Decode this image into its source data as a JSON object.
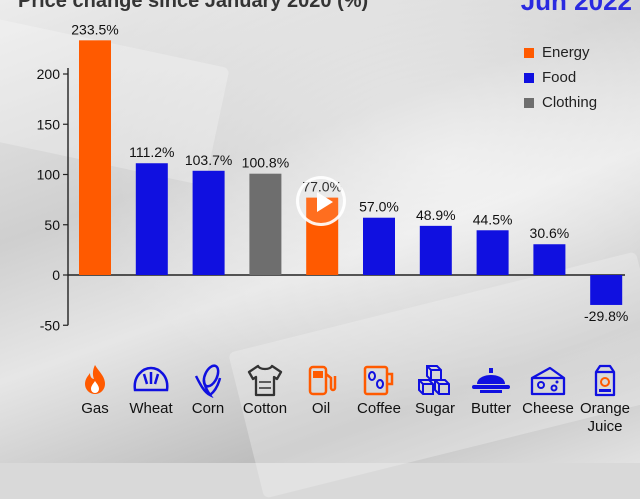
{
  "header": {
    "title_fragment": "Price change since January 2020 (%)",
    "date_fragment": "Jun 2022"
  },
  "legend": [
    {
      "label": "Energy",
      "color": "#ff5a00"
    },
    {
      "label": "Food",
      "color": "#1010e0"
    },
    {
      "label": "Clothing",
      "color": "#6e6e6e"
    }
  ],
  "chart_data": {
    "type": "bar",
    "categories": [
      "Gas",
      "Wheat",
      "Corn",
      "Cotton",
      "Oil",
      "Coffee",
      "Sugar",
      "Butter",
      "Cheese",
      "Orange Juice"
    ],
    "values": [
      233.5,
      111.2,
      103.7,
      100.8,
      77.0,
      57.0,
      48.9,
      44.5,
      30.6,
      -29.8
    ],
    "value_labels": [
      "233.5%",
      "111.2%",
      "103.7%",
      "100.8%",
      "77.0%",
      "57.0%",
      "48.9%",
      "44.5%",
      "30.6%",
      "-29.8%"
    ],
    "groups": [
      "Energy",
      "Food",
      "Food",
      "Clothing",
      "Energy",
      "Food",
      "Food",
      "Food",
      "Food",
      "Food"
    ],
    "yticks": [
      200,
      150,
      100,
      50,
      0,
      -50
    ],
    "ylim": [
      -50,
      233.5
    ]
  },
  "icons": [
    {
      "name": "flame-icon",
      "label": "Gas"
    },
    {
      "name": "bread-icon",
      "label": "Wheat"
    },
    {
      "name": "corn-icon",
      "label": "Corn"
    },
    {
      "name": "tshirt-icon",
      "label": "Cotton"
    },
    {
      "name": "fuel-pump-icon",
      "label": "Oil"
    },
    {
      "name": "coffee-icon",
      "label": "Coffee"
    },
    {
      "name": "sugar-cubes-icon",
      "label": "Sugar"
    },
    {
      "name": "butter-dish-icon",
      "label": "Butter"
    },
    {
      "name": "cheese-icon",
      "label": "Cheese"
    },
    {
      "name": "juice-carton-icon",
      "label": "Orange Juice"
    }
  ],
  "colors": {
    "accent_energy": "#ff5a00",
    "accent_food": "#1010e0",
    "accent_clothing": "#6e6e6e"
  }
}
